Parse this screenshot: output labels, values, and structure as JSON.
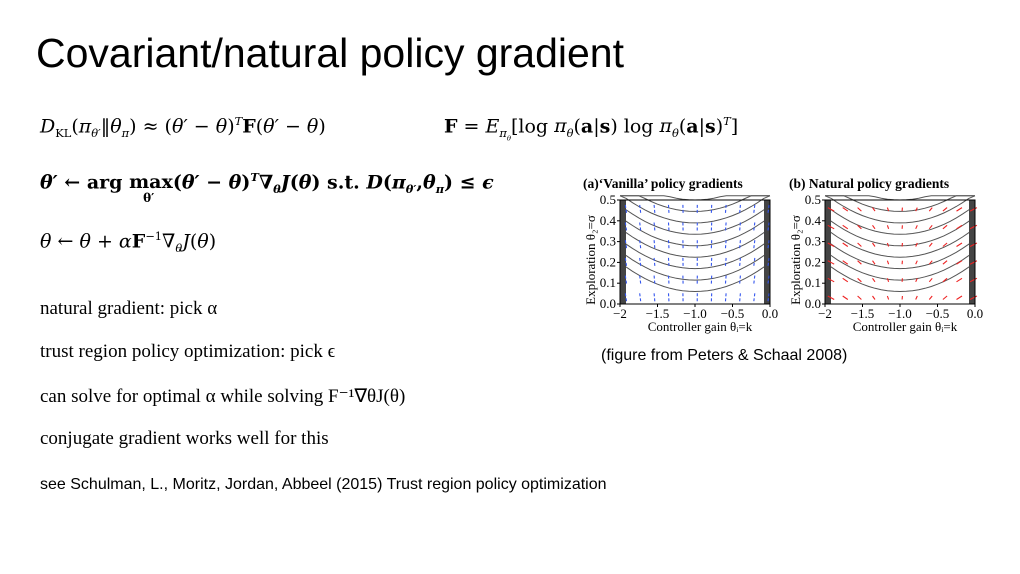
{
  "slide": {
    "title": "Covariant/natural policy gradient",
    "eq_kl": "Dₖₗ(πθ′‖θπ) ≈ (θ′ − θ)ᵀF(θ′ − θ)",
    "eq_fisher": "F = Eπθ[log πθ(a|s) log πθ(a|s)ᵀ]",
    "eq_argmax": "θ′ ← arg max (θ′ − θ)ᵀ∇θJ(θ) s.t. D(πθ′,θπ) ≤ ϵ",
    "eq_argmax_sub": "θ′",
    "eq_update": "θ ← θ + αF⁻¹∇θJ(θ)",
    "bullets": [
      "natural gradient: pick α",
      "trust region policy optimization: pick ϵ",
      "can solve for optimal α while solving F⁻¹∇θJ(θ)",
      "conjugate gradient works well for this"
    ],
    "reference": "see Schulman, L., Moritz, Jordan, Abbeel (2015) Trust region policy optimization",
    "caption": "(figure from Peters & Schaal 2008)"
  },
  "figure": {
    "panels": [
      {
        "title": "(a)‘Vanilla’ policy gradients",
        "arrow_color": "#3355ee",
        "xlabel": "Controller gain θᵢ=k",
        "ylabel": "Exploration θ₂=σ"
      },
      {
        "title": "(b) Natural policy gradients",
        "arrow_color": "#ee2222",
        "xlabel": "Controller gain θᵢ=k",
        "ylabel": "Exploration θ₂=σ"
      }
    ],
    "x_ticks": [
      "−2",
      "−1.5",
      "−1.0",
      "−0.5",
      "0.0"
    ],
    "y_ticks": [
      "0.0",
      "0.1",
      "0.2",
      "0.3",
      "0.4",
      "0.5"
    ]
  }
}
